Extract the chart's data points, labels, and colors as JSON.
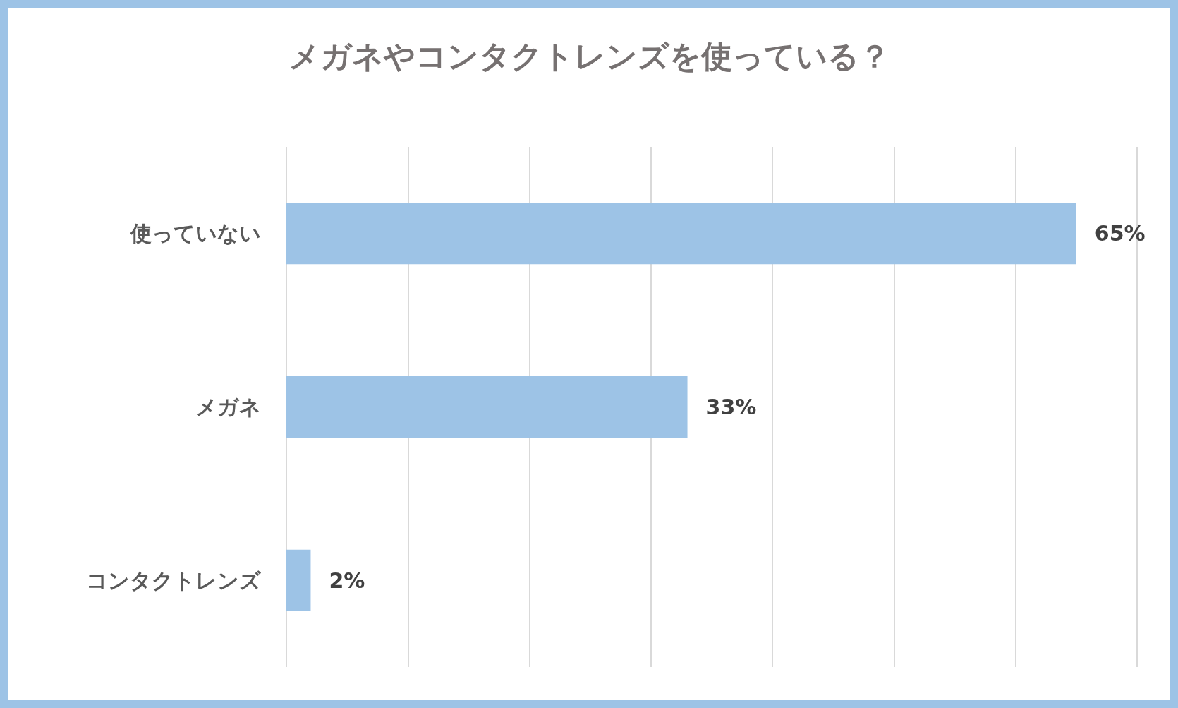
{
  "chart_data": {
    "type": "bar",
    "orientation": "horizontal",
    "title": "メガネやコンタクトレンズを使っている？",
    "categories": [
      "使っていない",
      "メガネ",
      "コンタクトレンズ"
    ],
    "values": [
      65,
      33,
      2
    ],
    "color": "#9dc3e6",
    "xlim": [
      0,
      70
    ],
    "xticks": [
      {
        "value": 0,
        "label": null
      },
      {
        "value": 10,
        "label": null
      },
      {
        "value": 20,
        "label": null
      },
      {
        "value": 30,
        "label": null
      },
      {
        "value": 40,
        "label": null
      },
      {
        "value": 50,
        "label": null
      },
      {
        "value": 60,
        "label": null
      },
      {
        "value": 70,
        "label": null
      }
    ],
    "value_labels": [
      "65%",
      "33%",
      "2%"
    ],
    "grid": "x",
    "tick_labels": "y"
  }
}
